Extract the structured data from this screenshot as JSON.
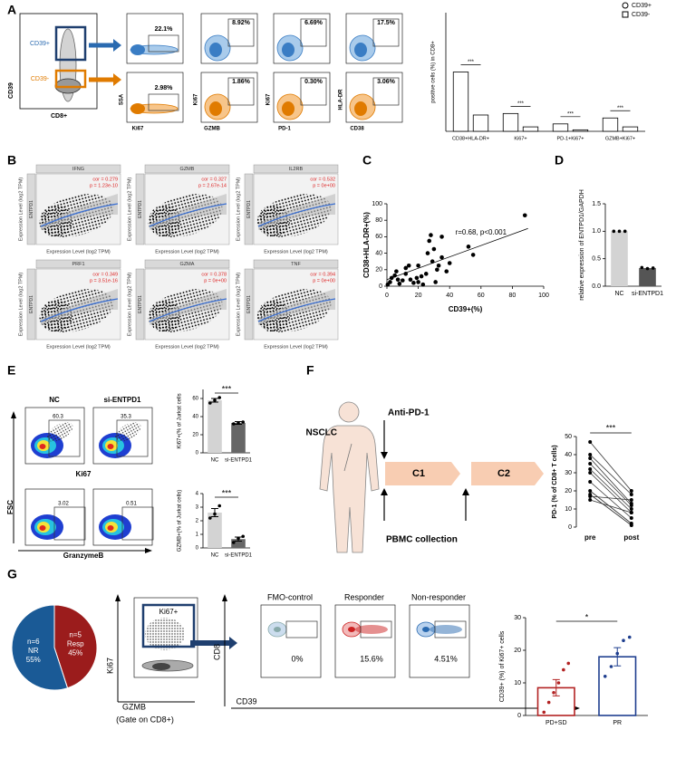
{
  "panels": [
    "A",
    "B",
    "C",
    "D",
    "E",
    "F",
    "G"
  ],
  "panel_a": {
    "gate_y": "CD39",
    "gate_x": "CD8+",
    "pos": "CD39+",
    "neg": "CD39-",
    "plots": [
      {
        "x": "Ki67",
        "y": "SSA",
        "top": "22.1%",
        "bottom": "2.98%"
      },
      {
        "x": "GZMB",
        "y": "Ki67",
        "top": "8.92%",
        "bottom": "1.86%"
      },
      {
        "x": "PD-1",
        "y": "Ki67",
        "top": "6.69%",
        "bottom": "0.30%"
      },
      {
        "x": "CD38",
        "y": "HLA-DR",
        "top": "17.5%",
        "bottom": "3.06%"
      }
    ]
  },
  "panel_b": {
    "xlabel": "Expression Level (log2 TPM)",
    "ylabel": "Expression Level (log2 TPM)",
    "strip": "ENTPD1",
    "plots": [
      {
        "gene": "IFNG",
        "cor": "cor = 0.279",
        "p": "p = 1.23e-10"
      },
      {
        "gene": "GZMB",
        "cor": "cor = 0.327",
        "p": "p = 2.67e-14"
      },
      {
        "gene": "IL2RB",
        "cor": "cor = 0.532",
        "p": "p = 0e+00"
      },
      {
        "gene": "PRF1",
        "cor": "cor = 0.349",
        "p": "p = 3.51e-16"
      },
      {
        "gene": "GZMA",
        "cor": "cor = 0.378",
        "p": "p = 0e+00"
      },
      {
        "gene": "TNF",
        "cor": "cor = 0.394",
        "p": "p = 0e+00"
      }
    ]
  },
  "panel_e": {
    "groups": [
      "NC",
      "si-ENTPD1"
    ],
    "top": [
      "60.3",
      "35.3"
    ],
    "bottom": [
      "3.02",
      "0.51"
    ],
    "xlabel_top": "Ki67",
    "xlabel_bottom": "GranzymeB",
    "ylabel": "FSC"
  },
  "panel_f": {
    "drug": "Anti-PD-1",
    "patient": "NSCLC",
    "cycles": [
      "C1",
      "C2"
    ],
    "collection": "PBMC collection"
  },
  "panel_g": {
    "gate": "Ki67+",
    "yaxis": "Ki67",
    "xaxis": "GZMB",
    "gate_note": "(Gate on CD8+)",
    "y2": "CD8",
    "x2": "CD39",
    "plots": [
      {
        "title": "FMO-control",
        "pct": "0%"
      },
      {
        "title": "Responder",
        "pct": "15.6%"
      },
      {
        "title": "Non-responder",
        "pct": "4.51%"
      }
    ]
  },
  "chart_data": [
    {
      "type": "grouped",
      "ylabel": "positive cells (%) in CD8+",
      "categories": [
        "CD38+HLA-DR+",
        "Ki67+",
        "PD-1+Ki67+",
        "GZMB+Ki67+"
      ],
      "series": [
        {
          "name": "CD39+",
          "marker": "circle",
          "color": "#ffffff",
          "values": [
            40,
            12,
            5,
            9
          ]
        },
        {
          "name": "CD39-",
          "marker": "square",
          "color": "#ffffff",
          "values": [
            11,
            3,
            1,
            3
          ]
        }
      ],
      "ylim": [
        0,
        80
      ],
      "significance": [
        "***",
        "***",
        "***",
        "***"
      ]
    },
    {
      "type": "scatter",
      "xlabel": "CD39+(%)",
      "ylabel": "CD38+HLA-DR+(%)",
      "annotation": "r=0.68, p<0.001",
      "color": "#000000",
      "x": [
        0.5,
        2,
        3,
        5,
        6,
        8,
        10,
        12,
        14,
        15,
        17,
        19,
        20,
        22,
        23,
        25,
        26,
        27,
        28,
        29,
        30,
        31,
        32,
        33,
        35,
        35,
        38,
        40,
        52,
        55,
        88,
        12,
        20,
        7
      ],
      "y": [
        2,
        5,
        10,
        13,
        18,
        3,
        7,
        22,
        25,
        8,
        4,
        10,
        5,
        12,
        2,
        15,
        40,
        55,
        62,
        30,
        45,
        5,
        20,
        25,
        60,
        35,
        18,
        28,
        48,
        38,
        86,
        15,
        25,
        8
      ],
      "fit": {
        "x": [
          0,
          90
        ],
        "y": [
          8,
          70
        ]
      },
      "xlim": [
        0,
        100
      ],
      "xticks": [
        0,
        20,
        40,
        60,
        80,
        100
      ],
      "ylim": [
        0,
        100
      ],
      "yticks": [
        0,
        20,
        40,
        60,
        80,
        100
      ]
    },
    {
      "type": "bar",
      "ylabel": "relative expression of ENTPD1/GAPDH",
      "categories": [
        "NC",
        "si-ENTPD1"
      ],
      "values": [
        1,
        0.33
      ],
      "points": [
        [
          1,
          1,
          1
        ],
        [
          0.34,
          0.32,
          0.33
        ]
      ],
      "colors": [
        "#d3d3d3",
        "#555555"
      ],
      "filled": true,
      "ylim": [
        0,
        1.5
      ],
      "yticks": [
        {
          "value": 0,
          "label": "0.0"
        },
        {
          "value": 0.5,
          "label": "0.5"
        },
        {
          "value": 1,
          "label": "1.0"
        },
        {
          "value": 1.5,
          "label": "1.5"
        }
      ]
    },
    {
      "type": "bar",
      "ylabel": "Ki67+(% of Jurkat cells",
      "categories": [
        "NC",
        "si-ENTPD1"
      ],
      "values": [
        58,
        33
      ],
      "errors": [
        2,
        1.5
      ],
      "points": [
        [
          55,
          58,
          61
        ],
        [
          32,
          33,
          34
        ]
      ],
      "colors": [
        "#d3d3d3",
        "#666666"
      ],
      "filled": true,
      "ylim": [
        0,
        70
      ],
      "yticks": [
        0,
        20,
        40,
        60
      ],
      "significance": "***"
    },
    {
      "type": "bar",
      "ylabel": "GZMB+(% of Jurkat cells)",
      "categories": [
        "NC",
        "si-ENTPD1"
      ],
      "values": [
        2.6,
        0.65
      ],
      "errors": [
        0.3,
        0.15
      ],
      "points": [
        [
          2.2,
          2.5,
          3.1
        ],
        [
          0.4,
          0.7,
          0.85
        ]
      ],
      "colors": [
        "#d3d3d3",
        "#666666"
      ],
      "filled": true,
      "ylim": [
        0,
        4
      ],
      "yticks": [
        0,
        1,
        2,
        3,
        4
      ],
      "significance": "***"
    },
    {
      "type": "paired",
      "ylabel": "PD-1 (% of CD8+ T cells)",
      "categories": [
        "pre",
        "post"
      ],
      "values": [
        [
          47,
          20
        ],
        [
          40,
          18
        ],
        [
          38,
          13
        ],
        [
          35,
          12
        ],
        [
          32,
          10
        ],
        [
          30,
          8
        ],
        [
          25,
          5
        ],
        [
          20,
          2
        ],
        [
          18,
          1
        ],
        [
          17,
          15
        ],
        [
          15,
          8
        ]
      ],
      "color": "#000000",
      "ylim": [
        0,
        50
      ],
      "yticks": [
        0,
        10,
        20,
        30,
        40,
        50
      ],
      "significance": "***"
    },
    {
      "type": "pie",
      "categories": [
        "NR",
        "Resp"
      ],
      "values": [
        55,
        45
      ],
      "value_labels": [
        "55%",
        "45%"
      ],
      "counts": [
        "n=6",
        "n=5"
      ],
      "colors": [
        "#1a5a96",
        "#9b1c1c"
      ]
    },
    {
      "type": "bar",
      "ylabel": "CD39+ (%) of Ki67+ cells",
      "categories": [
        "PD+SD",
        "PR"
      ],
      "values": [
        8.5,
        18
      ],
      "errors": [
        2.5,
        2.8
      ],
      "points": [
        [
          1,
          4,
          7,
          10,
          14,
          16
        ],
        [
          12,
          15,
          19,
          23,
          24
        ]
      ],
      "colors": [
        "#b22222",
        "#1f3f8f"
      ],
      "filled": false,
      "ylim": [
        0,
        30
      ],
      "yticks": [
        0,
        10,
        20,
        30
      ],
      "significance": "*"
    }
  ]
}
